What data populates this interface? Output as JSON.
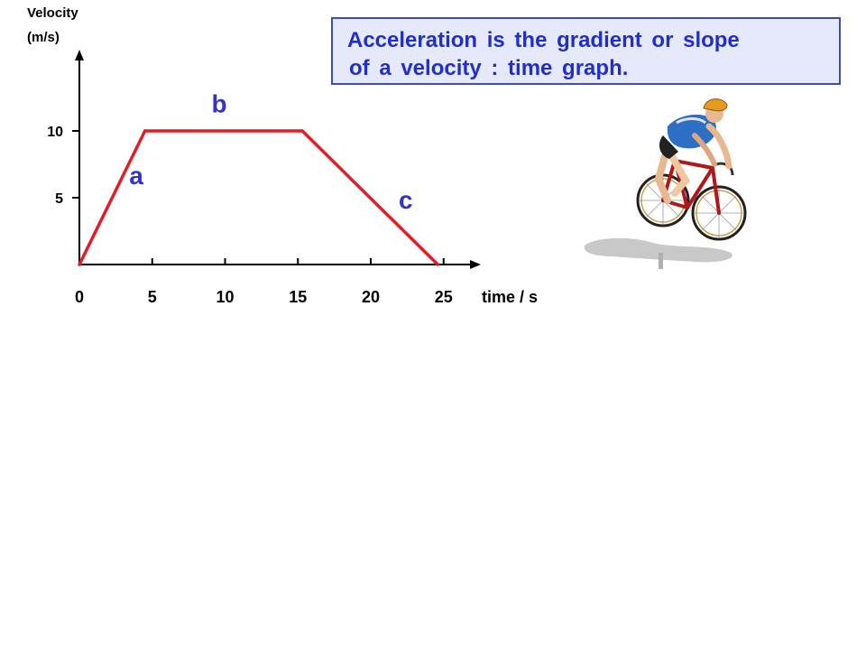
{
  "callout": {
    "line1": "Acceleration is the gradient or slope",
    "line2": "of a velocity : time graph."
  },
  "chart_data": {
    "type": "line",
    "ylabel_line1": "Velocity",
    "ylabel_line2": "(m/s)",
    "xlabel": "time / s",
    "x_ticks": [
      "0",
      "5",
      "10",
      "15",
      "20",
      "25"
    ],
    "y_ticks": [
      "5",
      "10"
    ],
    "xlim": [
      0,
      27.5
    ],
    "ylim": [
      0,
      15.5
    ],
    "series": [
      {
        "x": [
          0,
          4.5,
          15.3,
          24.6
        ],
        "y": [
          0,
          10,
          10,
          0
        ]
      }
    ],
    "segment_labels": [
      {
        "text": "a",
        "x": 3.9,
        "y": 6.0
      },
      {
        "text": "b",
        "x": 9.6,
        "y": 11.4
      },
      {
        "text": "c",
        "x": 22.4,
        "y": 4.2
      }
    ],
    "colors": {
      "line": "#e51c23",
      "labels": "#3333cc",
      "axis": "#000000"
    }
  }
}
